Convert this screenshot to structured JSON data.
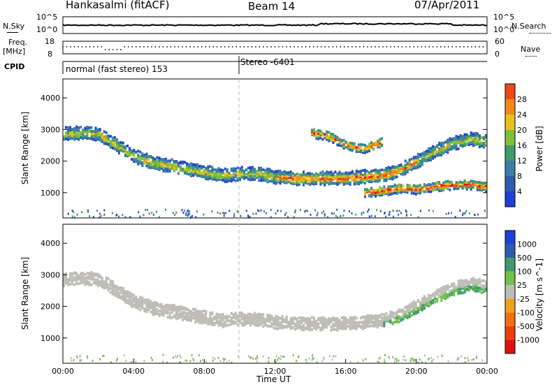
{
  "header": {
    "station": "Hankasalmi (fitACF)",
    "beam": "Beam 14",
    "date": "07/Apr/2011"
  },
  "strip_labels": {
    "nsky": "N.Sky",
    "nsearch": "N.Search",
    "freq_line1": "Freq.",
    "freq_line2": "[MHz]",
    "nave": "Nave",
    "cpid": "CPID",
    "noise_ticks_left": [
      "10^5",
      "10^0"
    ],
    "noise_ticks_right": [
      "10^5",
      "10^0"
    ],
    "freq_ticks": [
      "18",
      "8"
    ],
    "nave_ticks": [
      "60",
      "0"
    ]
  },
  "cpid_segments": [
    {
      "label": "normal (fast stereo) 153",
      "start_hour": 0
    },
    {
      "label": "Stereo -6401",
      "start_hour": 10
    }
  ],
  "colors": {
    "power": [
      "#1f3fd6",
      "#2f5bb0",
      "#3a7fa8",
      "#3f9a6e",
      "#7fbf3a",
      "#e8c21a",
      "#f08a1c",
      "#ea4b14",
      "#e01010"
    ],
    "velocity": [
      "#1f3fd6",
      "#2f5bb0",
      "#3f9a6e",
      "#72c04a",
      "#bdbdb5",
      "#f0a020",
      "#f07010",
      "#ea4010",
      "#e01010"
    ]
  },
  "chart_data": [
    {
      "type": "heatmap",
      "panel": "power",
      "xlabel": "",
      "ylabel": "Slant Range [km]",
      "xlim": [
        0,
        24
      ],
      "ylim": [
        200,
        4600
      ],
      "y_ticks": [
        "1000",
        "2000",
        "3000",
        "4000"
      ],
      "colorbar_label": "Power [dB]",
      "colorbar_ticks": [
        "4",
        "8",
        "12",
        "16",
        "20",
        "24",
        "28"
      ],
      "regions": [
        {
          "name": "main-band",
          "x": [
            0,
            1,
            2,
            3,
            4,
            5,
            6,
            7,
            8,
            9,
            10,
            11,
            12,
            13,
            14,
            15,
            16,
            17,
            18,
            19,
            20,
            21,
            22,
            23,
            24
          ],
          "y": [
            2850,
            2900,
            2850,
            2500,
            2150,
            1950,
            1850,
            1750,
            1650,
            1550,
            1600,
            1600,
            1500,
            1450,
            1450,
            1450,
            1450,
            1500,
            1550,
            1700,
            2000,
            2300,
            2550,
            2700,
            2600
          ]
        },
        {
          "name": "lower-band",
          "x": [
            17,
            18,
            19,
            20,
            21,
            22,
            23,
            24
          ],
          "y": [
            1000,
            1050,
            1150,
            1100,
            1200,
            1250,
            1250,
            1200
          ]
        },
        {
          "name": "upper-patch",
          "x": [
            14,
            15,
            16,
            17,
            18
          ],
          "y": [
            2900,
            2800,
            2500,
            2400,
            2600
          ]
        }
      ]
    },
    {
      "type": "heatmap",
      "panel": "velocity",
      "xlabel": "Time UT",
      "ylabel": "Slant Range [km]",
      "xlim": [
        0,
        24
      ],
      "ylim": [
        200,
        4600
      ],
      "x_ticks": [
        "00:00",
        "04:00",
        "08:00",
        "12:00",
        "16:00",
        "20:00",
        "00:00"
      ],
      "y_ticks": [
        "1000",
        "2000",
        "3000",
        "4000"
      ],
      "colorbar_label": "Velocity [m s^-1]",
      "colorbar_ticks": [
        "1000",
        "500",
        "100",
        "25",
        "-25",
        "-100",
        "-500",
        "-1000"
      ],
      "regions": [
        {
          "name": "main-band",
          "x": [
            0,
            1,
            2,
            3,
            4,
            5,
            6,
            7,
            8,
            9,
            10,
            11,
            12,
            13,
            14,
            15,
            16,
            17,
            18,
            19,
            20,
            21,
            22,
            23,
            24
          ],
          "y": [
            2850,
            2900,
            2850,
            2500,
            2150,
            1950,
            1850,
            1750,
            1650,
            1550,
            1600,
            1600,
            1500,
            1450,
            1450,
            1450,
            1450,
            1500,
            1550,
            1700,
            2000,
            2300,
            2550,
            2700,
            2600
          ]
        }
      ]
    }
  ]
}
